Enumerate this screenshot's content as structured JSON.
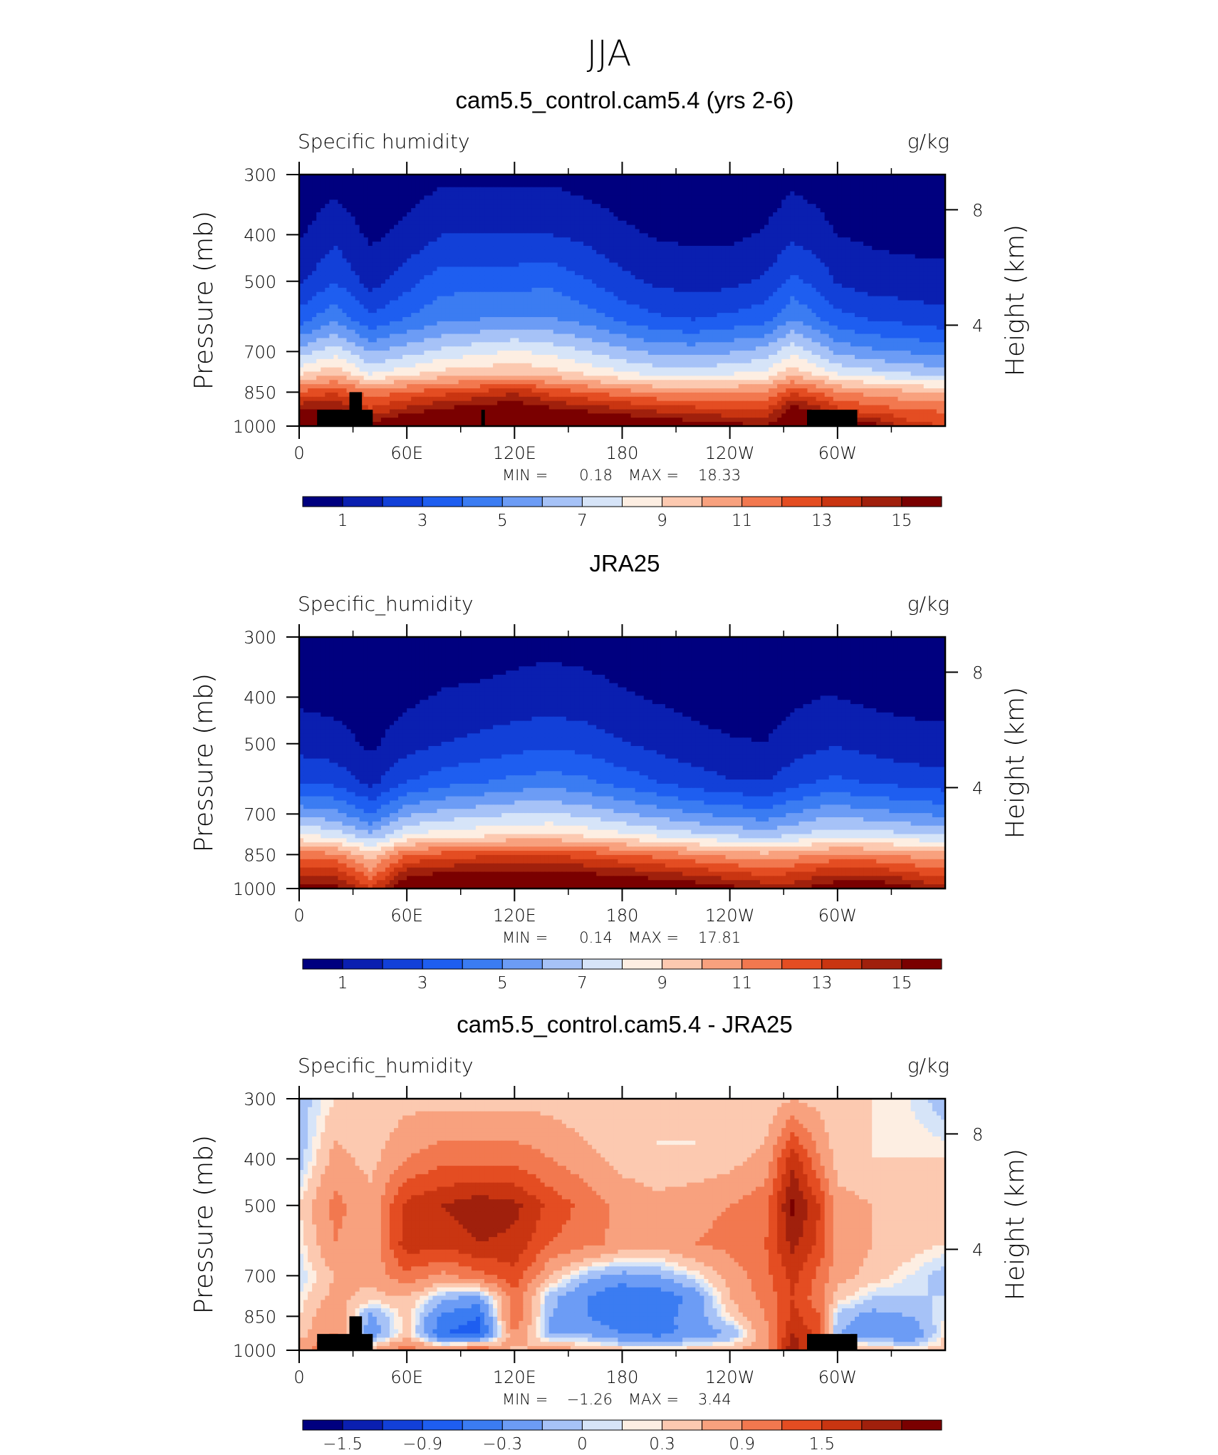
{
  "figure": {
    "title": "JJA",
    "colormap": [
      "#00007f",
      "#0a1fb0",
      "#1240d8",
      "#1e5ef0",
      "#3b7cf2",
      "#6c9cf5",
      "#a6c2f7",
      "#d6e4f8",
      "#fdeee2",
      "#fcc9b0",
      "#f8a17e",
      "#f2784f",
      "#e44d22",
      "#c93511",
      "#a0200c",
      "#7a0000"
    ]
  },
  "panels": [
    {
      "title": "cam5.5_control.cam5.4 (yrs 2-6)",
      "left_label": "Specific humidity",
      "right_label": "g/kg",
      "min_label": "MIN =",
      "min_value": "0.18",
      "max_label": "MAX =",
      "max_value": "18.33",
      "colorbar_labels": [
        "1",
        "3",
        "5",
        "7",
        "9",
        "11",
        "13",
        "15"
      ]
    },
    {
      "title": "JRA25",
      "left_label": "Specific_humidity",
      "right_label": "g/kg",
      "min_label": "MIN =",
      "min_value": "0.14",
      "max_label": "MAX =",
      "max_value": "17.81",
      "colorbar_labels": [
        "1",
        "3",
        "5",
        "7",
        "9",
        "11",
        "13",
        "15"
      ]
    },
    {
      "title": "cam5.5_control.cam5.4 - JRA25",
      "left_label": "Specific_humidity",
      "right_label": "g/kg",
      "min_label": "MIN =",
      "min_value": "−1.26",
      "max_label": "MAX =",
      "max_value": "3.44",
      "colorbar_labels": [
        "−1.5",
        "−0.9",
        "−0.3",
        "0",
        "0.3",
        "0.9",
        "1.5"
      ]
    }
  ],
  "axes": {
    "x_ticks": [
      "0",
      "60E",
      "120E",
      "180",
      "120W",
      "60W"
    ],
    "y_ticks": [
      "300",
      "400",
      "500",
      "700",
      "850",
      "1000"
    ],
    "y_label": "Pressure (mb)",
    "y2_ticks": [
      "8",
      "4"
    ],
    "y2_label": "Height (km)"
  },
  "chart_data": [
    {
      "type": "heatmap",
      "title": "cam5.5_control.cam5.4 (yrs 2-6)",
      "subtitle": "Specific humidity",
      "units": "g/kg",
      "ylabel": "Pressure (mb)",
      "y2label": "Height (km)",
      "x_ticks": [
        "0",
        "60E",
        "120E",
        "180",
        "120W",
        "60W"
      ],
      "y_ticks": [
        300,
        400,
        500,
        700,
        850,
        1000
      ],
      "y2_ticks": [
        8,
        4
      ],
      "xlim": [
        0,
        360
      ],
      "ylim": [
        1000,
        300
      ],
      "min": 0.18,
      "max": 18.33,
      "levels": [
        1,
        2,
        3,
        4,
        5,
        6,
        7,
        8,
        9,
        10,
        11,
        12,
        13,
        14,
        15
      ],
      "colorbar_labels": [
        1,
        3,
        5,
        7,
        9,
        11,
        13,
        15
      ],
      "lon": [
        0,
        20,
        40,
        60,
        80,
        100,
        120,
        140,
        160,
        180,
        200,
        220,
        240,
        260,
        275,
        290,
        300,
        320,
        340,
        360
      ],
      "pressure": [
        1000,
        925,
        850,
        775,
        700,
        600,
        500,
        400,
        300
      ],
      "values": [
        [
          17.4,
          17.8,
          15.2,
          17.4,
          17.2,
          18.2,
          17.4,
          17.7,
          17.2,
          16.8,
          16.5,
          15.8,
          15.5,
          14.9,
          17.2,
          15.8,
          17.0,
          15.6,
          13.3,
          13.1
        ],
        [
          15.1,
          15.3,
          13.2,
          14.3,
          15.2,
          15.8,
          16.1,
          15.4,
          14.8,
          14.2,
          13.7,
          13.4,
          13.1,
          12.9,
          15.6,
          14.5,
          13.2,
          12.4,
          12.1,
          11.8
        ],
        [
          12.2,
          12.8,
          11.4,
          12.1,
          12.6,
          13.1,
          13.9,
          12.6,
          12.0,
          11.4,
          11.0,
          10.8,
          10.9,
          11.1,
          12.8,
          11.9,
          11.1,
          10.6,
          10.2,
          9.8
        ],
        [
          8.7,
          9.7,
          7.8,
          8.6,
          9.3,
          9.6,
          9.8,
          9.4,
          8.8,
          8.1,
          7.6,
          7.5,
          7.8,
          8.2,
          9.6,
          8.6,
          7.8,
          7.3,
          6.9,
          6.4
        ],
        [
          6.4,
          7.6,
          5.9,
          6.6,
          7.3,
          7.7,
          8.1,
          7.7,
          7.0,
          6.3,
          5.7,
          5.6,
          5.9,
          6.4,
          7.8,
          6.6,
          5.8,
          5.2,
          4.9,
          4.6
        ],
        [
          3.6,
          4.8,
          3.2,
          4.1,
          4.8,
          5.0,
          5.2,
          5.1,
          4.6,
          3.8,
          3.2,
          3.0,
          3.3,
          3.7,
          5.0,
          4.1,
          3.4,
          2.9,
          2.7,
          2.4
        ],
        [
          1.8,
          3.0,
          1.6,
          2.6,
          3.6,
          3.6,
          3.6,
          3.8,
          3.1,
          2.3,
          1.8,
          1.6,
          1.7,
          2.2,
          3.3,
          2.6,
          1.9,
          1.5,
          1.4,
          1.3
        ],
        [
          0.9,
          1.7,
          0.8,
          1.3,
          2.0,
          2.0,
          2.0,
          2.0,
          1.7,
          1.2,
          0.9,
          0.8,
          0.8,
          1.1,
          1.8,
          1.4,
          1.0,
          0.8,
          0.7,
          0.7
        ],
        [
          0.3,
          0.6,
          0.3,
          0.5,
          0.8,
          0.8,
          0.8,
          0.8,
          0.6,
          0.4,
          0.3,
          0.3,
          0.3,
          0.4,
          0.7,
          0.5,
          0.3,
          0.3,
          0.3,
          0.3
        ]
      ]
    },
    {
      "type": "heatmap",
      "title": "JRA25",
      "subtitle": "Specific_humidity",
      "units": "g/kg",
      "ylabel": "Pressure (mb)",
      "y2label": "Height (km)",
      "x_ticks": [
        "0",
        "60E",
        "120E",
        "180",
        "120W",
        "60W"
      ],
      "y_ticks": [
        300,
        400,
        500,
        700,
        850,
        1000
      ],
      "y2_ticks": [
        8,
        4
      ],
      "xlim": [
        0,
        360
      ],
      "ylim": [
        1000,
        300
      ],
      "min": 0.14,
      "max": 17.81,
      "levels": [
        1,
        2,
        3,
        4,
        5,
        6,
        7,
        8,
        9,
        10,
        11,
        12,
        13,
        14,
        15
      ],
      "colorbar_labels": [
        1,
        3,
        5,
        7,
        9,
        11,
        13,
        15
      ],
      "lon": [
        0,
        20,
        40,
        60,
        80,
        100,
        120,
        140,
        160,
        180,
        200,
        220,
        240,
        260,
        275,
        290,
        300,
        320,
        340,
        360
      ],
      "pressure": [
        1000,
        925,
        850,
        775,
        700,
        600,
        500,
        400,
        300
      ],
      "values": [
        [
          15.2,
          15.6,
          13.0,
          16.6,
          17.1,
          17.2,
          17.3,
          17.4,
          17.1,
          16.8,
          16.4,
          15.9,
          15.4,
          14.8,
          14.6,
          15.6,
          16.1,
          16.4,
          15.3,
          14.2
        ],
        [
          13.8,
          13.6,
          11.2,
          14.4,
          14.9,
          15.1,
          15.3,
          15.3,
          14.9,
          14.5,
          14.1,
          13.6,
          13.1,
          12.6,
          12.9,
          13.4,
          13.7,
          13.6,
          13.0,
          12.4
        ],
        [
          11.7,
          11.2,
          9.4,
          11.9,
          12.4,
          12.7,
          12.9,
          12.9,
          12.5,
          12.0,
          11.6,
          11.1,
          10.6,
          10.3,
          10.6,
          11.0,
          11.2,
          11.1,
          10.7,
          10.3
        ],
        [
          8.2,
          7.6,
          6.2,
          8.1,
          8.5,
          8.8,
          9.1,
          9.2,
          8.8,
          8.3,
          7.8,
          7.3,
          6.9,
          6.6,
          7.0,
          7.5,
          7.7,
          7.5,
          7.2,
          6.9
        ],
        [
          5.7,
          5.3,
          4.0,
          5.8,
          6.4,
          6.7,
          7.0,
          7.1,
          6.7,
          6.1,
          5.6,
          5.1,
          4.7,
          4.4,
          5.0,
          5.6,
          5.7,
          5.4,
          5.1,
          4.8
        ],
        [
          3.0,
          2.7,
          1.7,
          3.0,
          3.6,
          3.9,
          4.3,
          4.5,
          4.2,
          3.6,
          3.0,
          2.5,
          2.1,
          2.0,
          2.6,
          3.1,
          3.2,
          2.9,
          2.6,
          2.4
        ],
        [
          1.6,
          1.4,
          0.8,
          1.6,
          2.0,
          2.3,
          2.6,
          2.8,
          2.6,
          2.1,
          1.7,
          1.3,
          1.1,
          1.0,
          1.5,
          1.8,
          1.9,
          1.6,
          1.4,
          1.3
        ],
        [
          0.8,
          0.7,
          0.5,
          0.8,
          1.1,
          1.2,
          1.4,
          1.5,
          1.4,
          1.1,
          0.9,
          0.7,
          0.6,
          0.6,
          0.8,
          1.0,
          1.0,
          0.8,
          0.7,
          0.7
        ],
        [
          0.3,
          0.3,
          0.2,
          0.3,
          0.5,
          0.5,
          0.6,
          0.7,
          0.6,
          0.5,
          0.4,
          0.3,
          0.2,
          0.2,
          0.3,
          0.4,
          0.4,
          0.3,
          0.3,
          0.3
        ]
      ]
    },
    {
      "type": "heatmap",
      "title": "cam5.5_control.cam5.4 - JRA25",
      "subtitle": "Specific_humidity",
      "units": "g/kg",
      "ylabel": "Pressure (mb)",
      "y2label": "Height (km)",
      "x_ticks": [
        "0",
        "60E",
        "120E",
        "180",
        "120W",
        "60W"
      ],
      "y_ticks": [
        300,
        400,
        500,
        700,
        850,
        1000
      ],
      "y2_ticks": [
        8,
        4
      ],
      "xlim": [
        0,
        360
      ],
      "ylim": [
        1000,
        300
      ],
      "min": -1.26,
      "max": 3.44,
      "levels": [
        -1.8,
        -1.5,
        -1.2,
        -0.9,
        -0.6,
        -0.3,
        -0.1,
        0,
        0.1,
        0.3,
        0.6,
        0.9,
        1.2,
        1.5,
        1.8
      ],
      "colorbar_labels": [
        -1.5,
        -0.9,
        -0.3,
        0,
        0.3,
        0.9,
        1.5
      ],
      "lon": [
        0,
        20,
        40,
        60,
        80,
        100,
        120,
        140,
        160,
        180,
        200,
        220,
        240,
        260,
        275,
        290,
        300,
        320,
        340,
        360
      ],
      "pressure": [
        1000,
        925,
        850,
        775,
        700,
        600,
        500,
        400,
        300
      ],
      "values": [
        [
          0.4,
          1.2,
          0.3,
          0.8,
          0.5,
          1.0,
          0.2,
          0.5,
          0.3,
          0.2,
          0.2,
          0.2,
          0.3,
          0.4,
          1.8,
          0.6,
          0.4,
          0.3,
          0.1,
          0.2
        ],
        [
          0.2,
          0.6,
          -0.5,
          0.2,
          -0.9,
          -1.1,
          0.6,
          -0.3,
          -0.3,
          -0.6,
          -0.7,
          -0.5,
          -0.3,
          0.5,
          1.5,
          1.1,
          -0.3,
          -0.5,
          -0.6,
          0.1
        ],
        [
          0.1,
          0.6,
          -0.4,
          0.2,
          -0.7,
          -0.9,
          0.9,
          -0.3,
          -0.6,
          -0.9,
          -0.7,
          -0.5,
          0.1,
          0.6,
          1.3,
          0.9,
          -0.2,
          -0.4,
          -0.3,
          0.0
        ],
        [
          0.0,
          0.4,
          0.2,
          0.3,
          -0.2,
          -0.4,
          0.8,
          -0.2,
          -0.6,
          -0.9,
          -0.8,
          -0.5,
          0.3,
          0.7,
          1.2,
          0.7,
          0.2,
          -0.1,
          -0.1,
          -0.1
        ],
        [
          -0.1,
          0.3,
          0.4,
          0.8,
          0.5,
          0.8,
          1.1,
          0.3,
          -0.2,
          -0.4,
          -0.3,
          0.0,
          0.4,
          0.8,
          1.3,
          0.8,
          0.4,
          0.2,
          0.0,
          -0.2
        ],
        [
          0.0,
          0.6,
          0.3,
          1.4,
          1.3,
          1.5,
          1.4,
          0.9,
          0.7,
          0.5,
          0.4,
          0.6,
          0.7,
          0.9,
          1.6,
          1.1,
          0.5,
          0.3,
          0.2,
          0.1
        ],
        [
          0.1,
          0.7,
          0.4,
          1.3,
          1.5,
          1.7,
          1.6,
          1.1,
          0.8,
          0.5,
          0.4,
          0.5,
          0.6,
          0.8,
          1.9,
          1.2,
          0.4,
          0.3,
          0.2,
          0.1
        ],
        [
          -0.2,
          0.4,
          0.2,
          0.6,
          0.8,
          0.8,
          0.8,
          0.6,
          0.4,
          0.2,
          0.1,
          0.1,
          0.2,
          0.4,
          1.4,
          0.6,
          0.2,
          0.1,
          0.1,
          0.1
        ],
        [
          -0.2,
          0.1,
          0.1,
          0.2,
          0.2,
          0.2,
          0.2,
          0.2,
          0.1,
          0.1,
          0.1,
          0.1,
          0.1,
          0.1,
          0.3,
          0.2,
          0.1,
          0.1,
          0.0,
          -0.2
        ]
      ]
    }
  ]
}
